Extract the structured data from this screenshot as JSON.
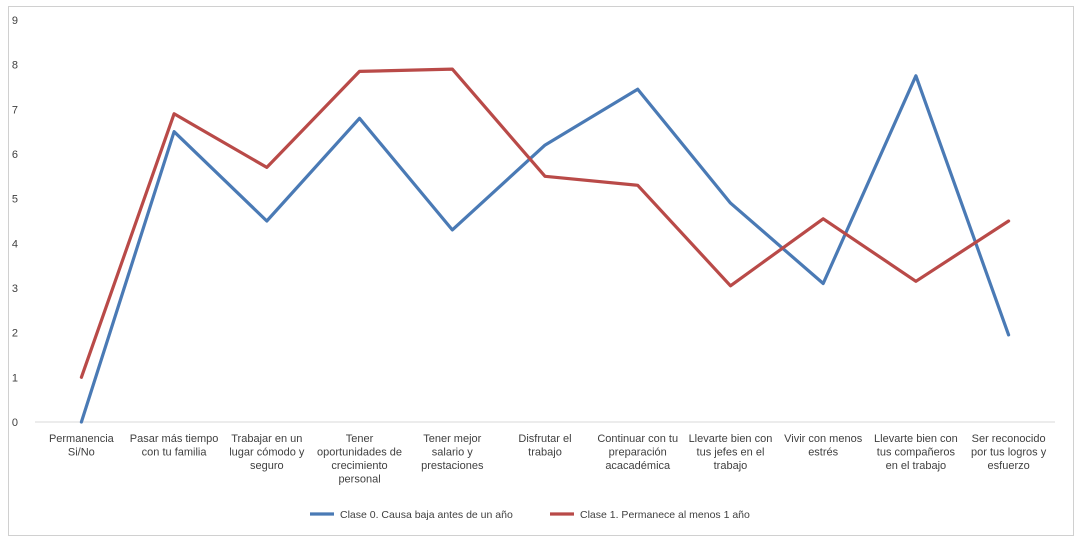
{
  "chart_data": {
    "type": "line",
    "title": "",
    "xlabel": "",
    "ylabel": "",
    "ylim": [
      0,
      9
    ],
    "yticks": [
      0,
      1,
      2,
      3,
      4,
      5,
      6,
      7,
      8,
      9
    ],
    "grid": false,
    "legend_position": "bottom",
    "categories": [
      [
        "Permanencia",
        "Si/No"
      ],
      [
        "Pasar más tiempo",
        "con tu familia"
      ],
      [
        "Trabajar en un",
        "lugar cómodo y",
        "seguro"
      ],
      [
        "Tener",
        "oportunidades de",
        "crecimiento",
        "personal"
      ],
      [
        "Tener mejor",
        "salario y",
        "prestaciones"
      ],
      [
        "Disfrutar el",
        "trabajo"
      ],
      [
        "Continuar con tu",
        "preparación",
        "acacadémica"
      ],
      [
        "Llevarte bien con",
        "tus jefes en el",
        "trabajo"
      ],
      [
        "Vivir con menos",
        "estrés"
      ],
      [
        "Llevarte bien con",
        "tus compañeros",
        "en el trabajo"
      ],
      [
        "Ser reconocido",
        "por tus logros y",
        "esfuerzo"
      ]
    ],
    "series": [
      {
        "name": "Clase 0. Causa baja antes de un año",
        "color": "#4a7ab5",
        "values": [
          0,
          6.5,
          4.5,
          6.8,
          4.3,
          6.2,
          7.45,
          4.9,
          3.1,
          7.75,
          1.95
        ]
      },
      {
        "name": "Clase 1. Permanece al menos 1 año",
        "color": "#b94a48",
        "values": [
          1.0,
          6.9,
          5.7,
          7.85,
          7.9,
          5.5,
          5.3,
          3.05,
          4.55,
          3.15,
          4.5
        ]
      }
    ]
  }
}
